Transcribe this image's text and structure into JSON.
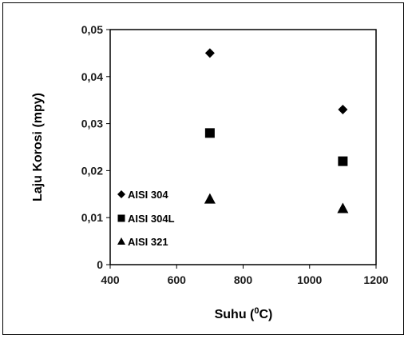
{
  "chart_data": {
    "type": "scatter",
    "title": "",
    "xlabel": "Suhu (",
    "xlabel_sup": "0",
    "xlabel_tail": "C)",
    "ylabel": "Laju Korosi (mpy)",
    "xlim": [
      400,
      1200
    ],
    "ylim": [
      0,
      0.05
    ],
    "x_ticks": [
      400,
      600,
      800,
      1000,
      1200
    ],
    "x_tick_labels": [
      "400",
      "600",
      "800",
      "1000",
      "1200"
    ],
    "y_ticks": [
      0,
      0.01,
      0.02,
      0.03,
      0.04,
      0.05
    ],
    "y_tick_labels": [
      "0",
      "0,01",
      "0,02",
      "0,03",
      "0,04",
      "0,05"
    ],
    "grid": false,
    "legend_position": "bottom-left",
    "series": [
      {
        "name": "AISI 304",
        "marker": "diamond",
        "color": "#000000",
        "x": [
          700,
          1100
        ],
        "y": [
          0.045,
          0.033
        ]
      },
      {
        "name": "AISI 304L",
        "marker": "square",
        "color": "#000000",
        "x": [
          700,
          1100
        ],
        "y": [
          0.028,
          0.022
        ]
      },
      {
        "name": "AISI 321",
        "marker": "triangle",
        "color": "#000000",
        "x": [
          700,
          1100
        ],
        "y": [
          0.014,
          0.012
        ]
      }
    ]
  }
}
